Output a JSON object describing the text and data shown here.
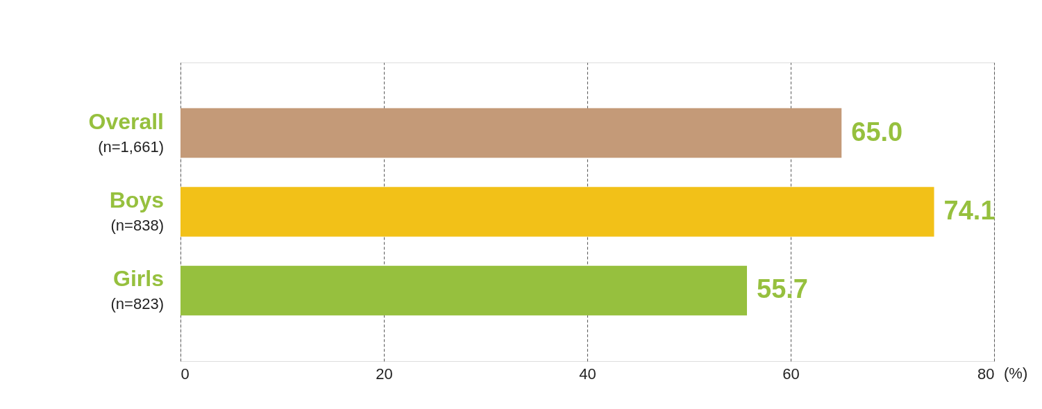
{
  "chart_data": {
    "type": "bar",
    "orientation": "horizontal",
    "categories": [
      "Overall\n(n=1,661)",
      "Boys\n(n=838)",
      "Girls\n(n=823)"
    ],
    "values": [
      65.0,
      74.1,
      55.7
    ],
    "colors": [
      "#c49a78",
      "#f2c118",
      "#96c03e"
    ],
    "xlim": [
      0,
      80
    ],
    "xticks": [
      0,
      20,
      40,
      60,
      80
    ],
    "xlabel": "(%)",
    "grid": "x",
    "legend": false,
    "value_labels": [
      "65.0",
      "74.1",
      "55.7"
    ]
  }
}
